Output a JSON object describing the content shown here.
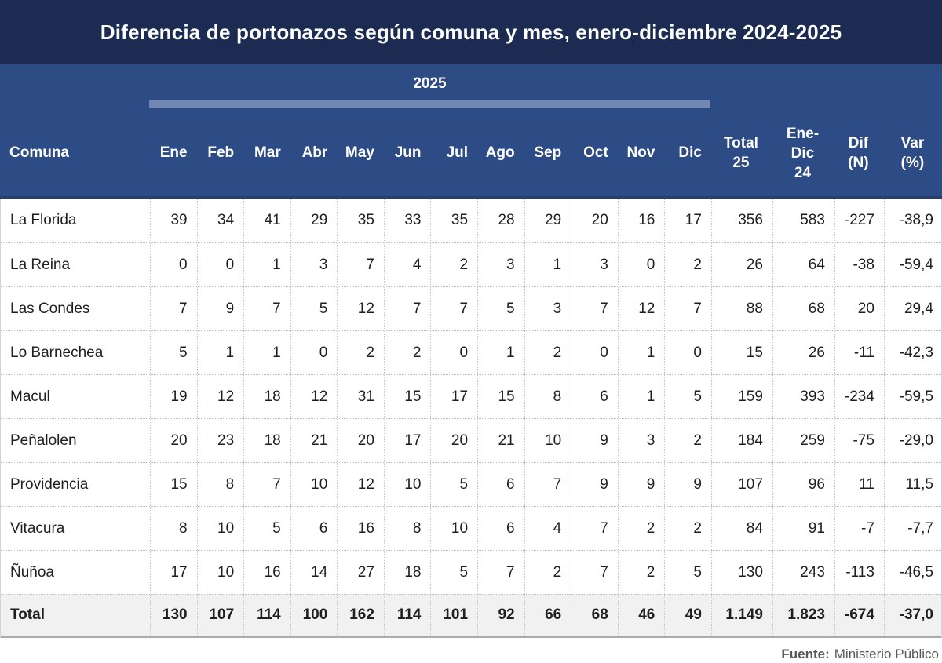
{
  "title_bar": {
    "title": "Diferencia de portonazos según comuna y mes, enero-diciembre 2024-2025"
  },
  "header": {
    "year_label": "2025",
    "comuna_label": "Comuna",
    "months": [
      "Ene",
      "Feb",
      "Mar",
      "Abr",
      "May",
      "Jun",
      "Jul",
      "Ago",
      "Sep",
      "Oct",
      "Nov",
      "Dic"
    ],
    "total25_label": "Total\n25",
    "enedic24_label": "Ene-\nDic\n24",
    "dif_label": "Dif\n(N)",
    "var_label": "Var\n(%)"
  },
  "chart_data": {
    "type": "table",
    "title": "Diferencia de portonazos según comuna y mes, enero-diciembre 2024-2025",
    "group_header": "2025",
    "columns": [
      "Comuna",
      "Ene",
      "Feb",
      "Mar",
      "Abr",
      "May",
      "Jun",
      "Jul",
      "Ago",
      "Sep",
      "Oct",
      "Nov",
      "Dic",
      "Total 25",
      "Ene-Dic 24",
      "Dif (N)",
      "Var (%)"
    ],
    "rows": [
      [
        "La Florida",
        39,
        34,
        41,
        29,
        35,
        33,
        35,
        28,
        29,
        20,
        16,
        17,
        356,
        583,
        -227,
        "-38,9"
      ],
      [
        "La Reina",
        0,
        0,
        1,
        3,
        7,
        4,
        2,
        3,
        1,
        3,
        0,
        2,
        26,
        64,
        -38,
        "-59,4"
      ],
      [
        "Las Condes",
        7,
        9,
        7,
        5,
        12,
        7,
        7,
        5,
        3,
        7,
        12,
        7,
        88,
        68,
        20,
        "29,4"
      ],
      [
        "Lo Barnechea",
        5,
        1,
        1,
        0,
        2,
        2,
        0,
        1,
        2,
        0,
        1,
        0,
        15,
        26,
        -11,
        "-42,3"
      ],
      [
        "Macul",
        19,
        12,
        18,
        12,
        31,
        15,
        17,
        15,
        8,
        6,
        1,
        5,
        159,
        393,
        -234,
        "-59,5"
      ],
      [
        "Peñalolen",
        20,
        23,
        18,
        21,
        20,
        17,
        20,
        21,
        10,
        9,
        3,
        2,
        184,
        259,
        -75,
        "-29,0"
      ],
      [
        "Providencia",
        15,
        8,
        7,
        10,
        12,
        10,
        5,
        6,
        7,
        9,
        9,
        9,
        107,
        96,
        11,
        "11,5"
      ],
      [
        "Vitacura",
        8,
        10,
        5,
        6,
        16,
        8,
        10,
        6,
        4,
        7,
        2,
        2,
        84,
        91,
        -7,
        "-7,7"
      ],
      [
        "Ñuñoa",
        17,
        10,
        16,
        14,
        27,
        18,
        5,
        7,
        2,
        7,
        2,
        5,
        130,
        243,
        -113,
        "-46,5"
      ],
      [
        "Total",
        130,
        107,
        114,
        100,
        162,
        114,
        101,
        92,
        66,
        68,
        46,
        49,
        "1.149",
        "1.823",
        -674,
        "-37,0"
      ]
    ],
    "source": "Ministerio Público"
  },
  "footer": {
    "source_label": "Fuente:",
    "source_text": "Ministerio Público"
  },
  "colors": {
    "title_bar_bg": "#1b2b52",
    "header_bg": "#2d4b85",
    "year_underline": "#7288b2",
    "total_row_bg": "#f1f1f1",
    "source_text": "#595959",
    "cell_text": "#1f1f1f"
  }
}
